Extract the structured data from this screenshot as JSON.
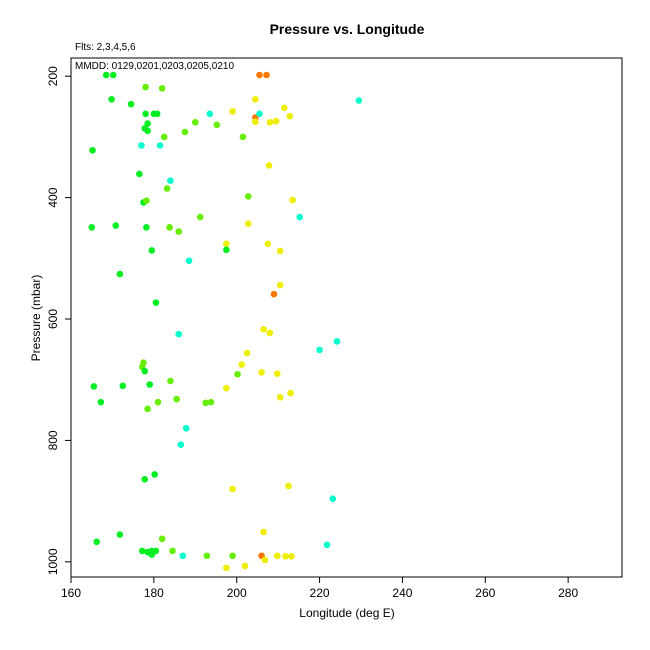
{
  "chart_data": {
    "type": "scatter",
    "title": "Pressure vs. Longitude",
    "subtitle_fits": "Flts: 2,3,4,5,6",
    "subtitle_mmdd": "MMDD: 0129,0201,0203,0205,0210",
    "xlabel": "Longitude (deg E)",
    "ylabel": "Pressure (mbar)",
    "xlim": [
      160,
      293
    ],
    "ylim": [
      1025,
      170
    ],
    "y_inverted": true,
    "x_ticks": [
      160,
      180,
      200,
      220,
      240,
      260,
      280
    ],
    "y_ticks": [
      200,
      400,
      600,
      800,
      1000
    ],
    "grid": false,
    "colors": {
      "green": "#00ee22",
      "lightgreen": "#66ee00",
      "cyan": "#00ffcc",
      "yellow": "#eeee00",
      "orange": "#ff7700"
    },
    "points": [
      {
        "x": 168.5,
        "y": 198,
        "c": "green"
      },
      {
        "x": 170.2,
        "y": 198,
        "c": "green"
      },
      {
        "x": 178,
        "y": 218,
        "c": "lightgreen"
      },
      {
        "x": 182,
        "y": 220,
        "c": "lightgreen"
      },
      {
        "x": 205.5,
        "y": 198,
        "c": "orange"
      },
      {
        "x": 207.2,
        "y": 198,
        "c": "orange"
      },
      {
        "x": 229.5,
        "y": 240,
        "c": "cyan"
      },
      {
        "x": 169.8,
        "y": 238,
        "c": "green"
      },
      {
        "x": 174.5,
        "y": 246,
        "c": "green"
      },
      {
        "x": 204.5,
        "y": 238,
        "c": "yellow"
      },
      {
        "x": 211.5,
        "y": 252,
        "c": "yellow"
      },
      {
        "x": 178,
        "y": 262,
        "c": "green"
      },
      {
        "x": 180,
        "y": 262,
        "c": "green"
      },
      {
        "x": 180.8,
        "y": 262,
        "c": "green"
      },
      {
        "x": 193.5,
        "y": 262,
        "c": "cyan"
      },
      {
        "x": 199,
        "y": 258,
        "c": "yellow"
      },
      {
        "x": 204.5,
        "y": 268,
        "c": "orange"
      },
      {
        "x": 205.5,
        "y": 262,
        "c": "cyan"
      },
      {
        "x": 212.8,
        "y": 266,
        "c": "yellow"
      },
      {
        "x": 178.5,
        "y": 278,
        "c": "green"
      },
      {
        "x": 190,
        "y": 276,
        "c": "lightgreen"
      },
      {
        "x": 195.2,
        "y": 280,
        "c": "lightgreen"
      },
      {
        "x": 204.5,
        "y": 275,
        "c": "yellow"
      },
      {
        "x": 208,
        "y": 276,
        "c": "yellow"
      },
      {
        "x": 209.5,
        "y": 274,
        "c": "yellow"
      },
      {
        "x": 177.8,
        "y": 286,
        "c": "green"
      },
      {
        "x": 178.5,
        "y": 290,
        "c": "green"
      },
      {
        "x": 187.5,
        "y": 292,
        "c": "lightgreen"
      },
      {
        "x": 182.5,
        "y": 300,
        "c": "lightgreen"
      },
      {
        "x": 201.5,
        "y": 300,
        "c": "lightgreen"
      },
      {
        "x": 177,
        "y": 314,
        "c": "cyan"
      },
      {
        "x": 181.5,
        "y": 314,
        "c": "cyan"
      },
      {
        "x": 165.2,
        "y": 322,
        "c": "green"
      },
      {
        "x": 207.8,
        "y": 347,
        "c": "yellow"
      },
      {
        "x": 176.5,
        "y": 361,
        "c": "green"
      },
      {
        "x": 184,
        "y": 372,
        "c": "cyan"
      },
      {
        "x": 183.2,
        "y": 385,
        "c": "lightgreen"
      },
      {
        "x": 202.8,
        "y": 398,
        "c": "lightgreen"
      },
      {
        "x": 213.5,
        "y": 404,
        "c": "yellow"
      },
      {
        "x": 177.5,
        "y": 408,
        "c": "green"
      },
      {
        "x": 178.2,
        "y": 405,
        "c": "lightgreen"
      },
      {
        "x": 215.2,
        "y": 432,
        "c": "cyan"
      },
      {
        "x": 191.2,
        "y": 432,
        "c": "lightgreen"
      },
      {
        "x": 202.8,
        "y": 443,
        "c": "yellow"
      },
      {
        "x": 165,
        "y": 449,
        "c": "green"
      },
      {
        "x": 170.8,
        "y": 446,
        "c": "green"
      },
      {
        "x": 178.2,
        "y": 449,
        "c": "green"
      },
      {
        "x": 183.8,
        "y": 449,
        "c": "lightgreen"
      },
      {
        "x": 186,
        "y": 456,
        "c": "lightgreen"
      },
      {
        "x": 197.5,
        "y": 476,
        "c": "yellow"
      },
      {
        "x": 207.5,
        "y": 476,
        "c": "yellow"
      },
      {
        "x": 197.5,
        "y": 486,
        "c": "green"
      },
      {
        "x": 179.5,
        "y": 487,
        "c": "green"
      },
      {
        "x": 210.5,
        "y": 488,
        "c": "yellow"
      },
      {
        "x": 188.5,
        "y": 504,
        "c": "cyan"
      },
      {
        "x": 171.8,
        "y": 526,
        "c": "green"
      },
      {
        "x": 210.5,
        "y": 544,
        "c": "yellow"
      },
      {
        "x": 209,
        "y": 559,
        "c": "orange"
      },
      {
        "x": 180.5,
        "y": 573,
        "c": "green"
      },
      {
        "x": 206.5,
        "y": 617,
        "c": "yellow"
      },
      {
        "x": 208,
        "y": 623,
        "c": "yellow"
      },
      {
        "x": 186,
        "y": 625,
        "c": "cyan"
      },
      {
        "x": 224.2,
        "y": 637,
        "c": "cyan"
      },
      {
        "x": 220,
        "y": 651,
        "c": "cyan"
      },
      {
        "x": 202.5,
        "y": 656,
        "c": "yellow"
      },
      {
        "x": 177.5,
        "y": 672,
        "c": "lightgreen"
      },
      {
        "x": 177.2,
        "y": 679,
        "c": "lightgreen"
      },
      {
        "x": 201.2,
        "y": 675,
        "c": "yellow"
      },
      {
        "x": 177.8,
        "y": 686,
        "c": "green"
      },
      {
        "x": 200.2,
        "y": 691,
        "c": "lightgreen"
      },
      {
        "x": 206,
        "y": 688,
        "c": "yellow"
      },
      {
        "x": 209.8,
        "y": 690,
        "c": "yellow"
      },
      {
        "x": 184,
        "y": 702,
        "c": "lightgreen"
      },
      {
        "x": 165.5,
        "y": 711,
        "c": "green"
      },
      {
        "x": 172.5,
        "y": 710,
        "c": "green"
      },
      {
        "x": 179,
        "y": 708,
        "c": "green"
      },
      {
        "x": 197.5,
        "y": 714,
        "c": "yellow"
      },
      {
        "x": 213,
        "y": 722,
        "c": "yellow"
      },
      {
        "x": 210.5,
        "y": 729,
        "c": "yellow"
      },
      {
        "x": 185.5,
        "y": 732,
        "c": "lightgreen"
      },
      {
        "x": 167.2,
        "y": 737,
        "c": "green"
      },
      {
        "x": 181,
        "y": 737,
        "c": "lightgreen"
      },
      {
        "x": 192.5,
        "y": 738,
        "c": "lightgreen"
      },
      {
        "x": 193.8,
        "y": 737,
        "c": "lightgreen"
      },
      {
        "x": 178.5,
        "y": 748,
        "c": "lightgreen"
      },
      {
        "x": 187.8,
        "y": 780,
        "c": "cyan"
      },
      {
        "x": 186.5,
        "y": 807,
        "c": "cyan"
      },
      {
        "x": 180.2,
        "y": 856,
        "c": "green"
      },
      {
        "x": 177.8,
        "y": 864,
        "c": "green"
      },
      {
        "x": 212.5,
        "y": 875,
        "c": "yellow"
      },
      {
        "x": 199,
        "y": 880,
        "c": "yellow"
      },
      {
        "x": 223.2,
        "y": 896,
        "c": "cyan"
      },
      {
        "x": 206.5,
        "y": 951,
        "c": "yellow"
      },
      {
        "x": 171.8,
        "y": 955,
        "c": "green"
      },
      {
        "x": 182,
        "y": 962,
        "c": "lightgreen"
      },
      {
        "x": 166.2,
        "y": 967,
        "c": "green"
      },
      {
        "x": 221.8,
        "y": 972,
        "c": "cyan"
      },
      {
        "x": 177.2,
        "y": 982,
        "c": "green"
      },
      {
        "x": 178.5,
        "y": 984,
        "c": "green"
      },
      {
        "x": 179.5,
        "y": 982,
        "c": "green"
      },
      {
        "x": 180.5,
        "y": 982,
        "c": "green"
      },
      {
        "x": 184.5,
        "y": 982,
        "c": "lightgreen"
      },
      {
        "x": 179.5,
        "y": 988,
        "c": "green"
      },
      {
        "x": 187,
        "y": 990,
        "c": "cyan"
      },
      {
        "x": 192.8,
        "y": 990,
        "c": "lightgreen"
      },
      {
        "x": 199,
        "y": 990,
        "c": "lightgreen"
      },
      {
        "x": 206,
        "y": 990,
        "c": "orange"
      },
      {
        "x": 206.8,
        "y": 997,
        "c": "yellow"
      },
      {
        "x": 209.8,
        "y": 990,
        "c": "yellow"
      },
      {
        "x": 211.8,
        "y": 991,
        "c": "yellow"
      },
      {
        "x": 213.2,
        "y": 991,
        "c": "yellow"
      },
      {
        "x": 202,
        "y": 1007,
        "c": "yellow"
      },
      {
        "x": 197.5,
        "y": 1010,
        "c": "yellow"
      }
    ]
  }
}
